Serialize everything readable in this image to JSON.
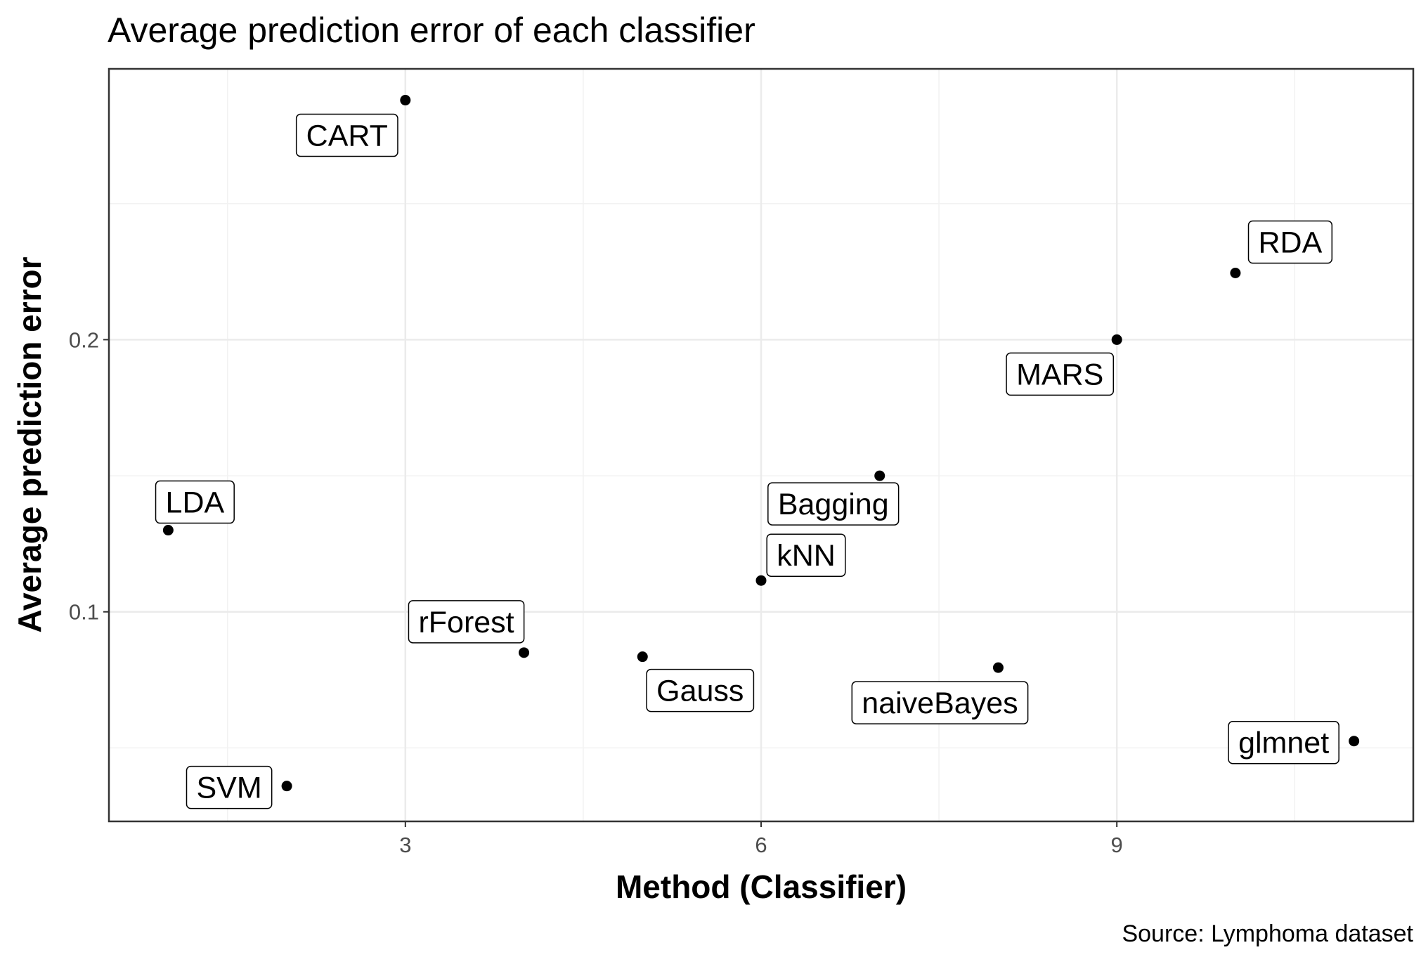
{
  "chart_data": {
    "type": "scatter",
    "title": "Average prediction error of each classifier",
    "xlabel": "Method (Classifier)",
    "ylabel": "Average prediction error",
    "caption": "Source: Lymphoma dataset",
    "xlim": [
      0.5,
      11.5
    ],
    "ylim": [
      0.023,
      0.2995
    ],
    "xticks": [
      3,
      6,
      9
    ],
    "xtick_labels": [
      "3",
      "6",
      "9"
    ],
    "yticks": [
      0.1,
      0.2
    ],
    "ytick_labels": [
      "0.1",
      "0.2"
    ],
    "grid": true,
    "point_color": "#000000",
    "points": [
      {
        "label": "LDA",
        "x": 1,
        "y": 0.13
      },
      {
        "label": "SVM",
        "x": 2,
        "y": 0.036
      },
      {
        "label": "CART",
        "x": 3,
        "y": 0.288
      },
      {
        "label": "rForest",
        "x": 4,
        "y": 0.085
      },
      {
        "label": "Gauss",
        "x": 5,
        "y": 0.0835
      },
      {
        "label": "kNN",
        "x": 6,
        "y": 0.1115
      },
      {
        "label": "Bagging",
        "x": 7,
        "y": 0.15
      },
      {
        "label": "naiveBayes",
        "x": 8,
        "y": 0.0795
      },
      {
        "label": "MARS",
        "x": 9,
        "y": 0.2
      },
      {
        "label": "RDA",
        "x": 10,
        "y": 0.2245
      },
      {
        "label": "glmnet",
        "x": 11,
        "y": 0.0525
      }
    ]
  }
}
